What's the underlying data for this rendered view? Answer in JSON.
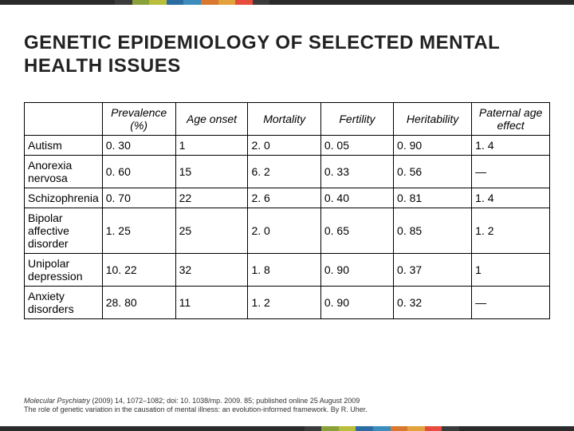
{
  "top_colors": [
    "#2b2b2b",
    "#3b3b3b",
    "#8aa038",
    "#b9bf3b",
    "#2b6ca3",
    "#3c8dbc",
    "#d9782f",
    "#e2a23c",
    "#e74c3c",
    "#3b3b3b",
    "#2b2b2b"
  ],
  "top_widths": [
    20,
    3,
    3,
    3,
    3,
    3,
    3,
    3,
    3,
    3,
    53
  ],
  "bottom_colors": [
    "#2b2b2b",
    "#3b3b3b",
    "#8aa038",
    "#b9bf3b",
    "#2b6ca3",
    "#3c8dbc",
    "#d9782f",
    "#e2a23c",
    "#e74c3c",
    "#3b3b3b",
    "#2b2b2b"
  ],
  "bottom_widths": [
    53,
    3,
    3,
    3,
    3,
    3,
    3,
    3,
    3,
    3,
    20
  ],
  "title": "GENETIC EPIDEMIOLOGY OF SELECTED MENTAL HEALTH ISSUES",
  "table": {
    "columns": [
      "",
      "Prevalence (%)",
      "Age onset",
      "Mortality",
      "Fertility",
      "Heritability",
      "Paternal age effect"
    ],
    "rows": [
      [
        "Autism",
        "0. 30",
        "1",
        "2. 0",
        "0. 05",
        "0. 90",
        "1. 4"
      ],
      [
        "Anorexia nervosa",
        "0. 60",
        "15",
        "6. 2",
        "0. 33",
        "0. 56",
        "—"
      ],
      [
        "Schizophrenia",
        "0. 70",
        "22",
        "2. 6",
        "0. 40",
        "0. 81",
        "1. 4"
      ],
      [
        "Bipolar affective disorder",
        "1. 25",
        "25",
        "2. 0",
        "0. 65",
        "0. 85",
        "1. 2"
      ],
      [
        "Unipolar depression",
        "10. 22",
        "32",
        "1. 8",
        "0. 90",
        "0. 37",
        "1"
      ],
      [
        "Anxiety disorders",
        "28. 80",
        "11",
        "1. 2",
        "0. 90",
        "0. 32",
        "—"
      ]
    ],
    "col_widths_pct": [
      14,
      14,
      14,
      14,
      14,
      15,
      15
    ],
    "border_color": "#000000",
    "font_size": 14
  },
  "citation": {
    "journal": "Molecular Psychiatry",
    "line1_rest": " (2009) 14, 1072–1082; doi: 10. 1038/mp. 2009. 85; published online 25 August 2009",
    "line2": "The role of genetic variation in the causation of mental illness: an evolution-informed framework. By R. Uher."
  }
}
